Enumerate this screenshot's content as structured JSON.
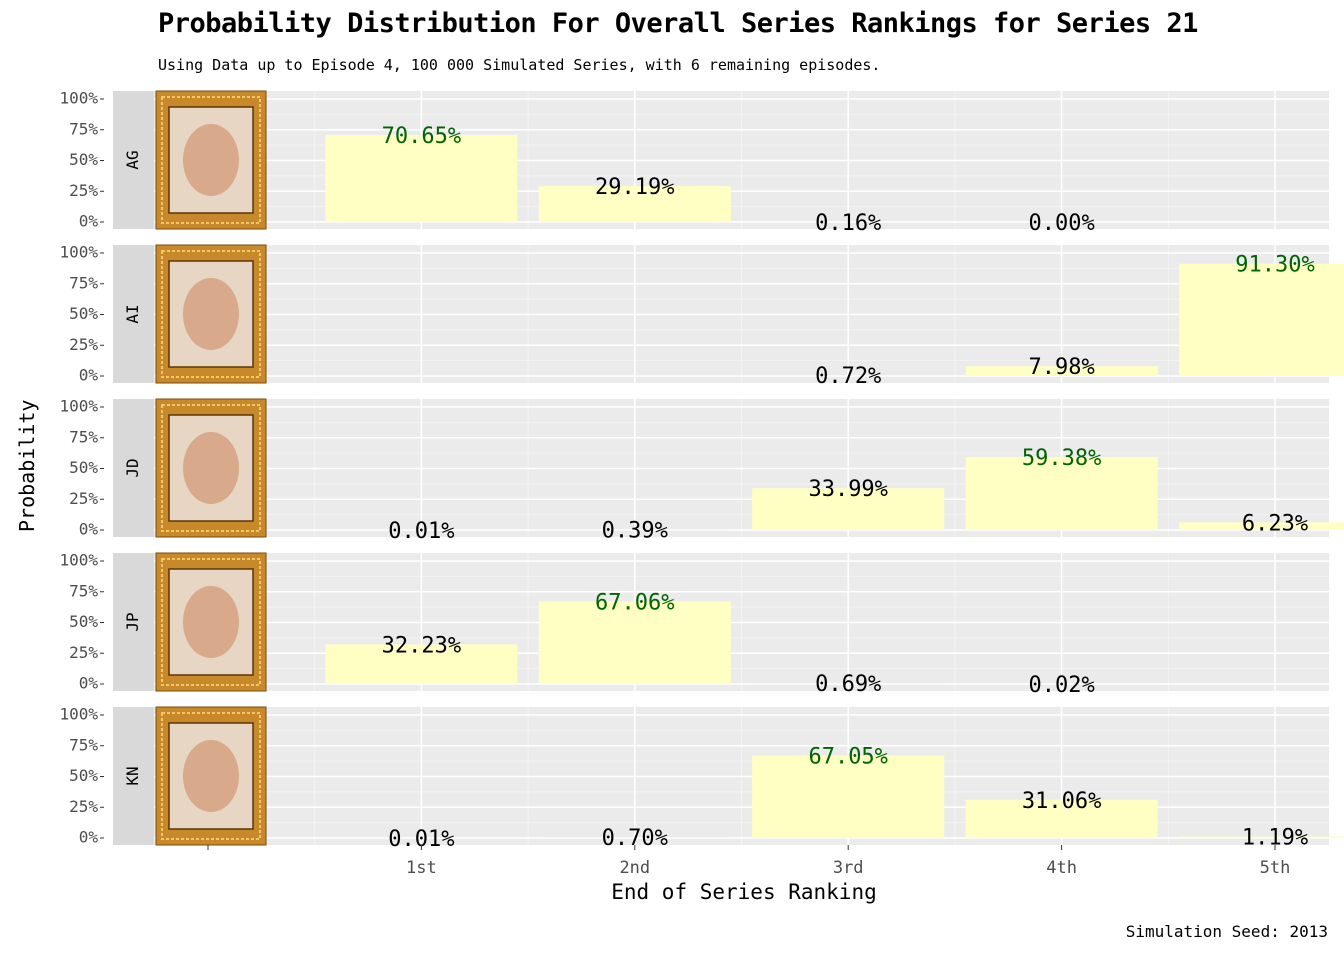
{
  "title": "Probability Distribution For Overall Series Rankings for Series 21",
  "subtitle": "Using Data up to Episode 4, 100 000 Simulated Series, with 6 remaining episodes.",
  "caption": "Simulation Seed: 2013",
  "colors": {
    "bar": "#ffffc4",
    "highlight_label": "#006400",
    "label": "#000000",
    "panel_bg": "#ebebeb",
    "strip_bg": "#d9d9d9",
    "frame": "#c8892a"
  },
  "chart_data": {
    "type": "bar",
    "facet": "rows",
    "xlabel": "End of Series Ranking",
    "ylabel": "Probability",
    "categories": [
      "1st",
      "2nd",
      "3rd",
      "4th",
      "5th"
    ],
    "yticks": [
      "0%",
      "25%",
      "50%",
      "75%",
      "100%"
    ],
    "ylim": [
      0,
      100
    ],
    "grid": true,
    "legend": "none",
    "series": [
      {
        "name": "AG",
        "values": [
          70.65,
          29.19,
          0.16,
          0.0,
          null
        ],
        "labels": [
          "70.65%",
          "29.19%",
          "0.16%",
          "0.00%",
          null
        ],
        "highlight": 0
      },
      {
        "name": "AI",
        "values": [
          null,
          null,
          0.72,
          7.98,
          91.3
        ],
        "labels": [
          null,
          null,
          "0.72%",
          "7.98%",
          "91.30%"
        ],
        "highlight": 4
      },
      {
        "name": "JD",
        "values": [
          0.01,
          0.39,
          33.99,
          59.38,
          6.23
        ],
        "labels": [
          "0.01%",
          "0.39%",
          "33.99%",
          "59.38%",
          "6.23%"
        ],
        "highlight": 3
      },
      {
        "name": "JP",
        "values": [
          32.23,
          67.06,
          0.69,
          0.02,
          null
        ],
        "labels": [
          "32.23%",
          "67.06%",
          "0.69%",
          "0.02%",
          null
        ],
        "highlight": 1
      },
      {
        "name": "KN",
        "values": [
          0.01,
          0.7,
          67.05,
          31.06,
          1.19
        ],
        "labels": [
          "0.01%",
          "0.70%",
          "67.05%",
          "31.06%",
          "1.19%"
        ],
        "highlight": 2
      }
    ]
  }
}
